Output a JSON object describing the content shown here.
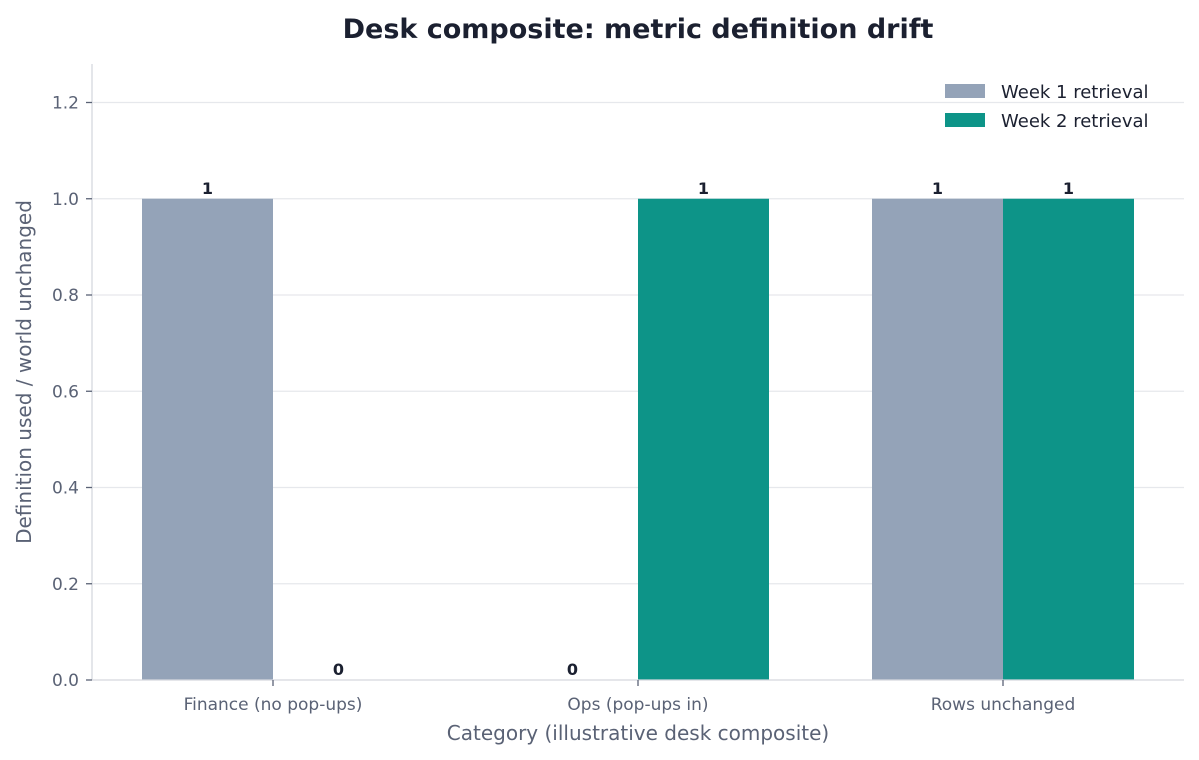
{
  "chart_data": {
    "type": "bar",
    "title": "Desk composite: metric definition drift",
    "xlabel": "Category (illustrative desk composite)",
    "ylabel": "Definition used / world unchanged",
    "categories": [
      "Finance (no pop-ups)",
      "Ops (pop-ups in)",
      "Rows unchanged"
    ],
    "series": [
      {
        "name": "Week 1 retrieval",
        "values": [
          1,
          0,
          1
        ],
        "color": "#94a3b8"
      },
      {
        "name": "Week 2 retrieval",
        "values": [
          0,
          1,
          1
        ],
        "color": "#0d9488"
      }
    ],
    "ylim": [
      0,
      1.28
    ],
    "yticks": [
      0.0,
      0.2,
      0.4,
      0.6,
      0.8,
      1.0,
      1.2
    ],
    "ytick_labels": [
      "0.0",
      "0.2",
      "0.4",
      "0.6",
      "0.8",
      "1.0",
      "1.2"
    ],
    "grid": true,
    "legend_position": "top-right"
  }
}
